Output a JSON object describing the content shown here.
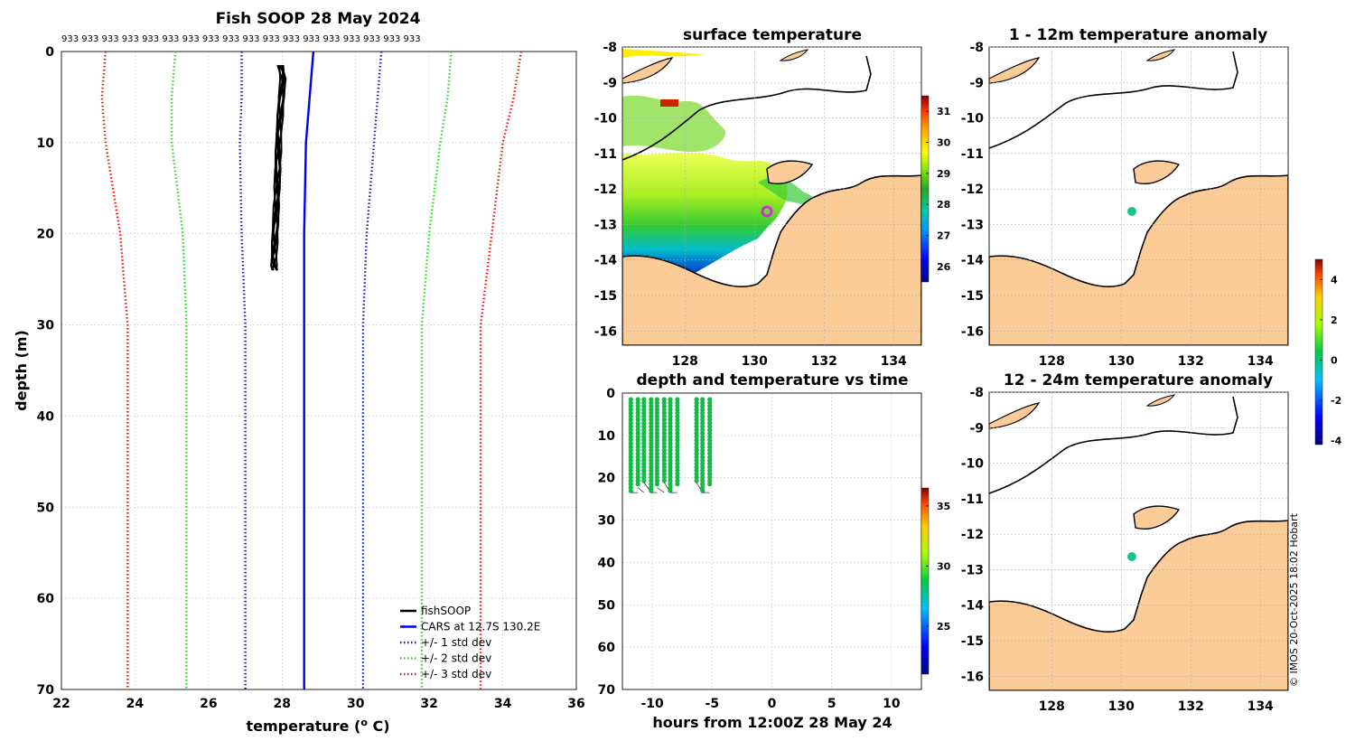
{
  "title": "Fish SOOP 28 May 2024",
  "vessel_ids_label": "933 933 933 933 933 933 933 933 933 933 933 933 933 933 933 933 933 933",
  "credit": "© IMOS 20-Oct-2025 18:02 Hobart",
  "colors": {
    "land": "#fbcb98",
    "fishsoop": "#000000",
    "cars": "#0000ee",
    "std1": "#1515dd",
    "std2": "#22dd22",
    "std3": "#ee1111",
    "station": "#1ac48c",
    "obs": "#11bb44",
    "marker": "#cc33cc"
  },
  "chart_data": [
    {
      "id": "profile",
      "type": "line",
      "title": "Fish SOOP 28 May 2024",
      "xlabel": "temperature (o C)",
      "xlabel_main": "temperature (",
      "xlabel_sup": "o",
      "xlabel_tail": " C)",
      "ylabel": "depth (m)",
      "xlim": [
        22,
        36
      ],
      "ylim": [
        70,
        0
      ],
      "xticks": [
        "22",
        "24",
        "26",
        "28",
        "30",
        "32",
        "34",
        "36"
      ],
      "yticks": [
        "0",
        "10",
        "20",
        "30",
        "40",
        "50",
        "60",
        "70"
      ],
      "grid": true,
      "legend": "bottom-right",
      "series": [
        {
          "name": "fishSOOP",
          "style": "solid",
          "color": "#000000",
          "x": [
            27.95,
            28.02,
            27.98,
            27.95,
            27.92,
            27.9,
            27.88,
            27.86,
            27.84,
            27.82,
            27.8,
            27.79,
            27.78,
            27.8
          ],
          "y": [
            1.5,
            3,
            5,
            7,
            9,
            11,
            13,
            15,
            17,
            19,
            21,
            22.5,
            23.5,
            24
          ]
        },
        {
          "name": "CARS at 12.7S 130.2E",
          "style": "solid",
          "color": "#0000ee",
          "x": [
            28.85,
            28.75,
            28.65,
            28.6,
            28.6,
            28.6,
            28.6
          ],
          "y": [
            0,
            5,
            10,
            20,
            30,
            50,
            70
          ]
        },
        {
          "name": "+/- 1 std dev",
          "style": "dotted",
          "color": "#1515dd",
          "x_low": [
            26.9,
            26.9,
            26.85,
            26.9,
            27.0,
            27.0,
            27.0
          ],
          "x_high": [
            30.7,
            30.6,
            30.5,
            30.3,
            30.2,
            30.2,
            30.2
          ],
          "y": [
            0,
            5,
            10,
            20,
            30,
            50,
            70
          ]
        },
        {
          "name": "+/- 2 std dev",
          "style": "dotted",
          "color": "#22dd22",
          "x_low": [
            25.1,
            25.0,
            25.0,
            25.3,
            25.4,
            25.4,
            25.4
          ],
          "x_high": [
            32.6,
            32.5,
            32.3,
            32.0,
            31.8,
            31.8,
            31.8
          ],
          "y": [
            0,
            5,
            10,
            20,
            30,
            50,
            70
          ]
        },
        {
          "name": "+/- 3 std dev",
          "style": "dotted",
          "color": "#ee1111",
          "x_low": [
            23.2,
            23.1,
            23.2,
            23.6,
            23.8,
            23.8,
            23.8
          ],
          "x_high": [
            34.5,
            34.3,
            34.0,
            33.7,
            33.4,
            33.4,
            33.4
          ],
          "y": [
            0,
            5,
            10,
            20,
            30,
            50,
            70
          ]
        }
      ]
    },
    {
      "id": "sst",
      "type": "heatmap",
      "title": "surface temperature",
      "xticks": [
        "128",
        "130",
        "132",
        "134"
      ],
      "yticks": [
        "-8",
        "-9",
        "-10",
        "-11",
        "-12",
        "-13",
        "-14",
        "-15",
        "-16"
      ],
      "xlim": [
        126.2,
        134.8
      ],
      "ylim": [
        -16.4,
        -8.0
      ],
      "colorbar": {
        "ticks": [
          "26",
          "27",
          "28",
          "29",
          "30",
          "31"
        ],
        "range": [
          25.5,
          31.5
        ]
      },
      "marker": {
        "lon": 130.2,
        "lat": -12.7
      }
    },
    {
      "id": "anom1",
      "type": "heatmap",
      "title": "1 - 12m temperature anomaly",
      "xticks": [
        "128",
        "130",
        "132",
        "134"
      ],
      "yticks": [
        "-8",
        "-9",
        "-10",
        "-11",
        "-12",
        "-13",
        "-14",
        "-15",
        "-16"
      ],
      "xlim": [
        126.2,
        134.8
      ],
      "ylim": [
        -16.4,
        -8.0
      ],
      "station": {
        "lon": 130.2,
        "lat": -12.7
      },
      "colorbar": {
        "ticks": [
          "4",
          "2",
          "0",
          "-2",
          "-4"
        ],
        "range": [
          -4.2,
          5
        ]
      }
    },
    {
      "id": "anom2",
      "type": "heatmap",
      "title": "12 - 24m temperature anomaly",
      "xticks": [
        "128",
        "130",
        "132",
        "134"
      ],
      "yticks": [
        "-8",
        "-9",
        "-10",
        "-11",
        "-12",
        "-13",
        "-14",
        "-15",
        "-16"
      ],
      "xlim": [
        126.2,
        134.8
      ],
      "ylim": [
        -16.4,
        -8.0
      ],
      "station": {
        "lon": 130.2,
        "lat": -12.7
      }
    },
    {
      "id": "dvt",
      "type": "scatter",
      "title": "depth and temperature vs time",
      "xlabel": "hours from 12:00Z 28 May 24",
      "xlim": [
        -12.5,
        12.5
      ],
      "ylim": [
        70,
        0
      ],
      "xticks": [
        "-10",
        "-5",
        "0",
        "5",
        "10"
      ],
      "yticks": [
        "0",
        "10",
        "20",
        "30",
        "40",
        "50",
        "60",
        "70"
      ],
      "casts": [
        -11.8,
        -11.2,
        -10.7,
        -10.1,
        -9.6,
        -9.0,
        -8.5,
        -7.9,
        -6.3,
        -5.8,
        -5.2
      ],
      "depth_range": [
        1.5,
        23.5
      ],
      "colorbar": {
        "ticks": [
          "35",
          "30",
          "25"
        ],
        "range": [
          21,
          36.5
        ]
      }
    }
  ]
}
